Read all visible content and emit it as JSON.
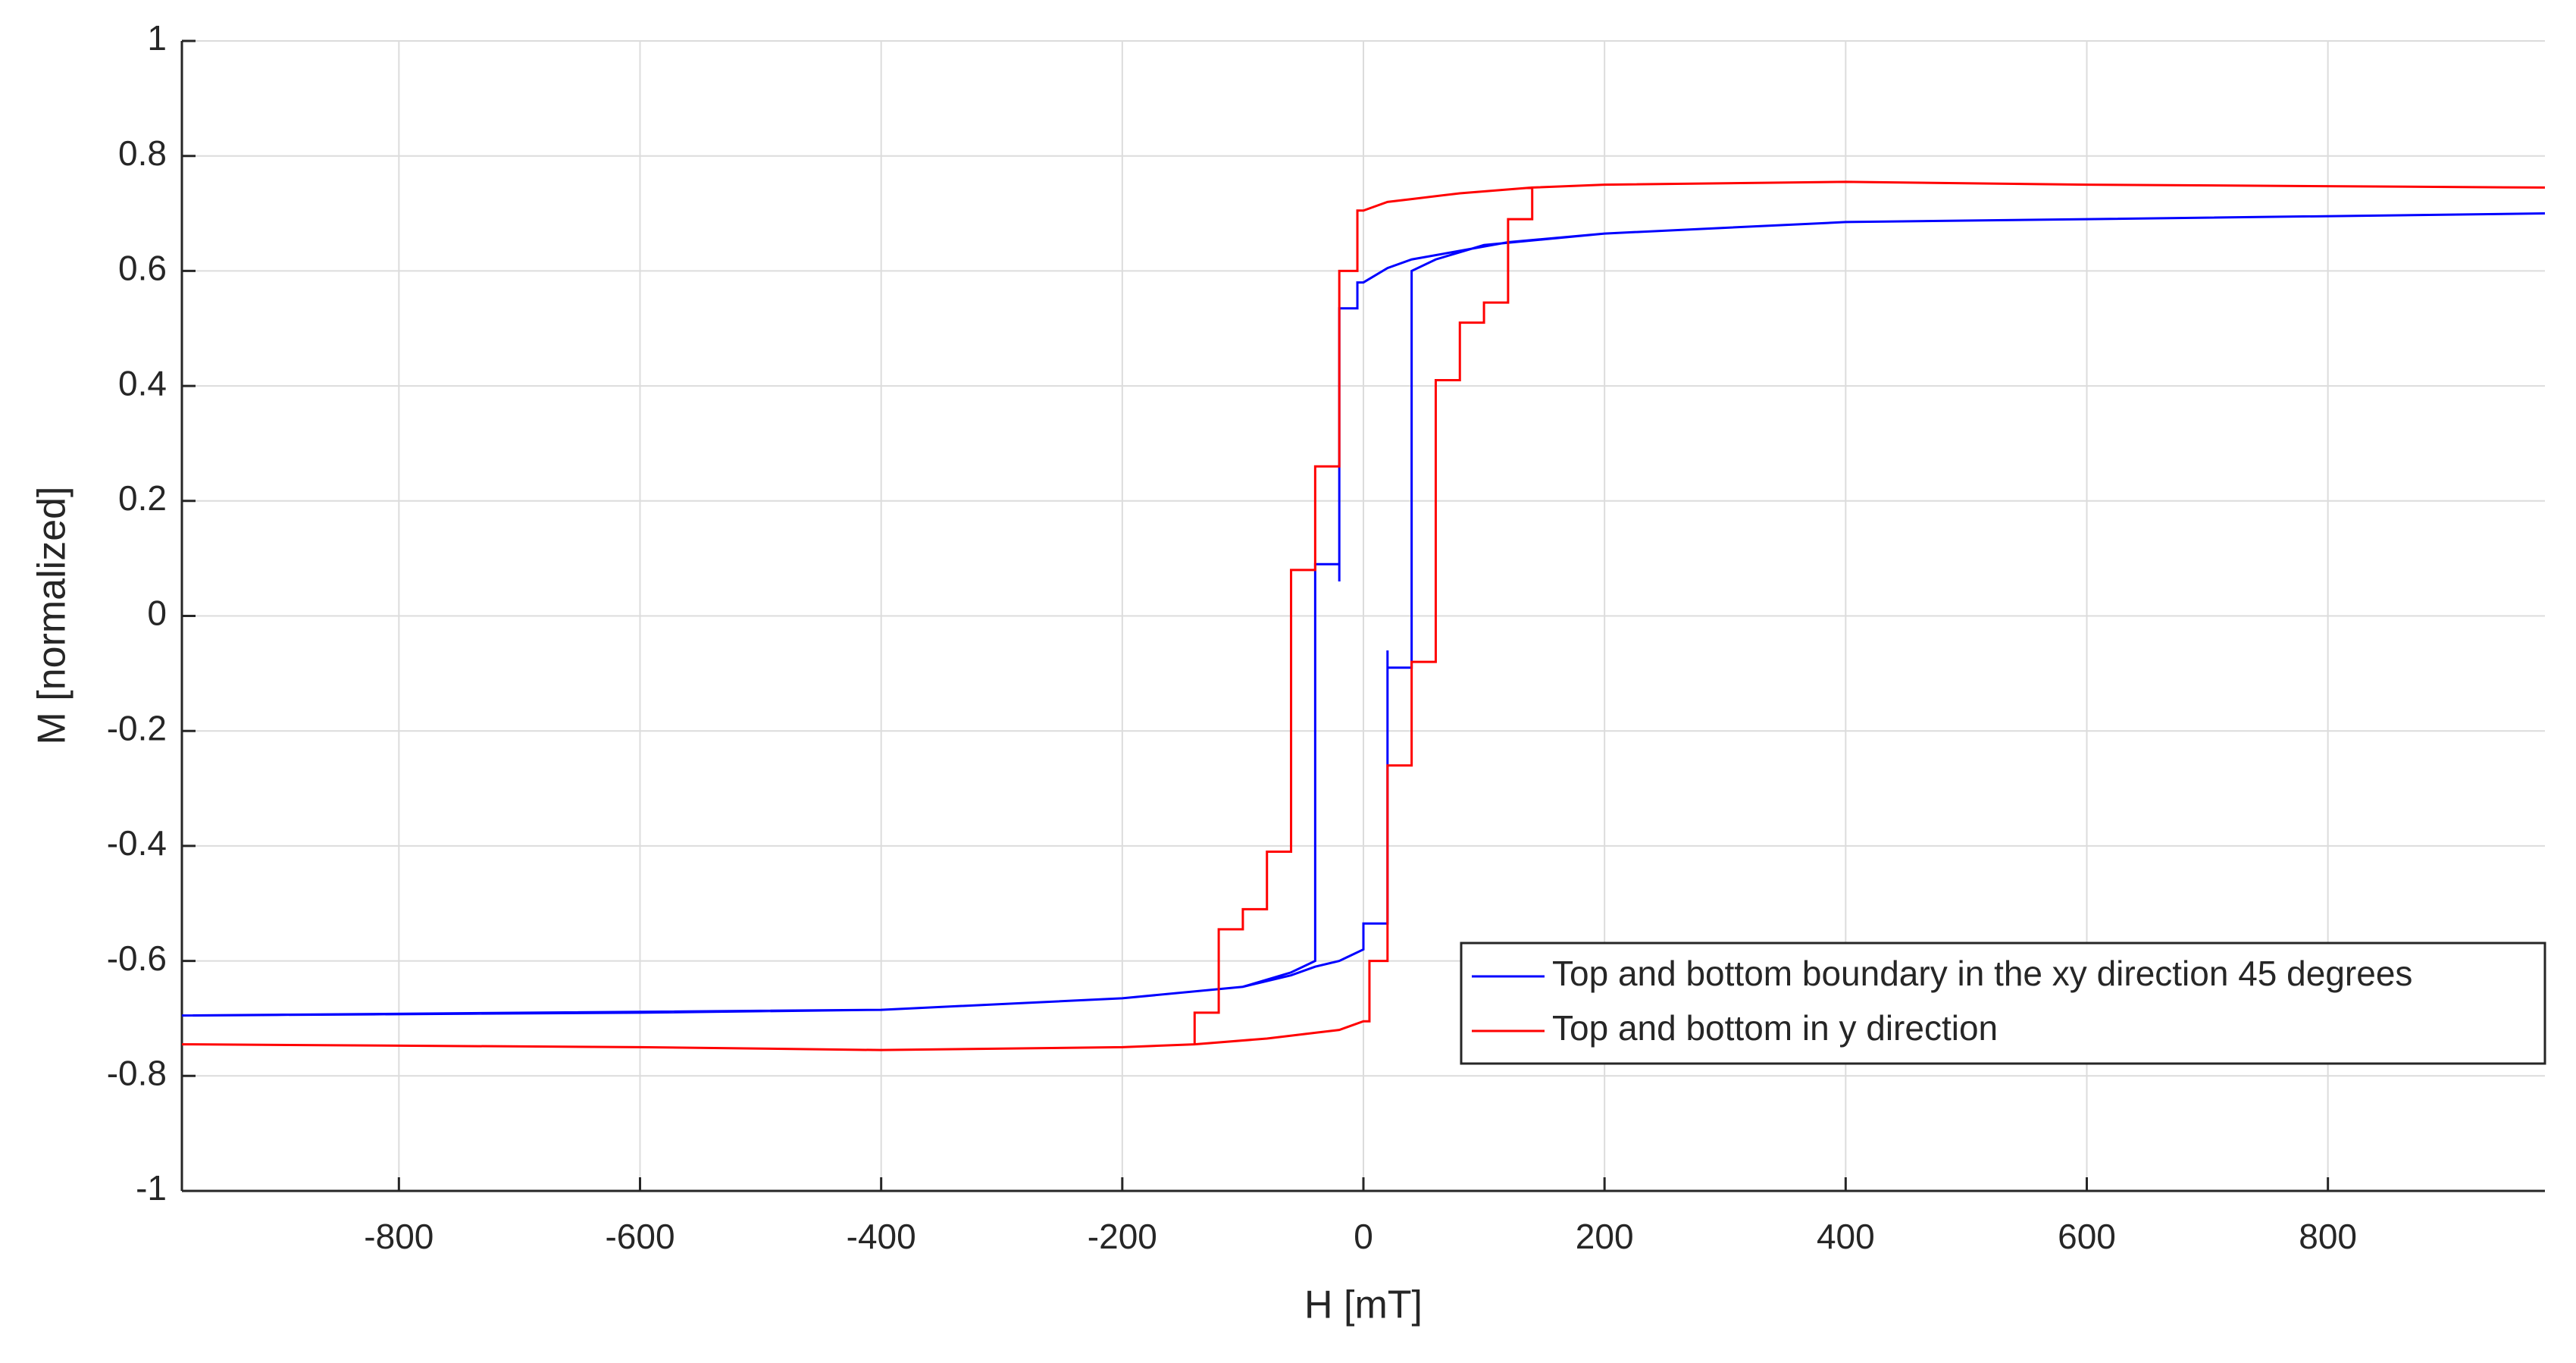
{
  "chart_data": {
    "type": "line",
    "xlabel": "H [mT]",
    "ylabel": "M [normalized]",
    "xlim": [
      -980,
      980
    ],
    "ylim": [
      -1,
      1
    ],
    "xticks": [
      -800,
      -600,
      -400,
      -200,
      0,
      200,
      400,
      600,
      800
    ],
    "yticks": [
      -1,
      -0.8,
      -0.6,
      -0.4,
      -0.2,
      0,
      0.2,
      0.4,
      0.6,
      0.8,
      1
    ],
    "grid": true,
    "legend_position": "lower right",
    "series": [
      {
        "name": "Top and bottom boundary in the xy direction 45 degrees",
        "color": "#0000ff",
        "x": [
          980,
          600,
          400,
          200,
          120,
          80,
          40,
          20,
          0,
          -5,
          -5,
          -20,
          -20,
          -20,
          -40,
          -40,
          -60,
          -100,
          -200,
          -400,
          -600,
          -980,
          -400,
          -200,
          -100,
          -60,
          -40,
          -20,
          0,
          0,
          20,
          20,
          20,
          40,
          40,
          60,
          100,
          200,
          400,
          600,
          980
        ],
        "values": [
          0.7,
          0.69,
          0.685,
          0.665,
          0.65,
          0.635,
          0.62,
          0.605,
          0.58,
          0.58,
          0.535,
          0.535,
          0.06,
          0.09,
          0.09,
          -0.6,
          -0.62,
          -0.645,
          -0.665,
          -0.685,
          -0.69,
          -0.695,
          -0.685,
          -0.665,
          -0.645,
          -0.625,
          -0.61,
          -0.6,
          -0.58,
          -0.535,
          -0.535,
          -0.06,
          -0.09,
          -0.09,
          0.6,
          0.62,
          0.645,
          0.665,
          0.685,
          0.69,
          0.7
        ]
      },
      {
        "name": "Top and bottom in y direction",
        "color": "#ff0000",
        "x": [
          980,
          600,
          400,
          200,
          140,
          80,
          40,
          20,
          0,
          -5,
          -5,
          -20,
          -20,
          -40,
          -40,
          -60,
          -60,
          -80,
          -80,
          -100,
          -100,
          -120,
          -120,
          -140,
          -140,
          -200,
          -400,
          -600,
          -980,
          -600,
          -400,
          -200,
          -140,
          -80,
          -40,
          -20,
          0,
          5,
          5,
          20,
          20,
          40,
          40,
          60,
          60,
          80,
          80,
          100,
          100,
          120,
          120,
          140,
          140,
          200,
          400,
          600,
          980
        ],
        "values": [
          0.745,
          0.75,
          0.755,
          0.75,
          0.745,
          0.735,
          0.725,
          0.72,
          0.705,
          0.705,
          0.6,
          0.6,
          0.26,
          0.26,
          0.08,
          0.08,
          -0.41,
          -0.41,
          -0.51,
          -0.51,
          -0.545,
          -0.545,
          -0.69,
          -0.69,
          -0.745,
          -0.75,
          -0.755,
          -0.75,
          -0.745,
          -0.75,
          -0.755,
          -0.75,
          -0.745,
          -0.735,
          -0.725,
          -0.72,
          -0.705,
          -0.705,
          -0.6,
          -0.6,
          -0.26,
          -0.26,
          -0.08,
          -0.08,
          0.41,
          0.41,
          0.51,
          0.51,
          0.545,
          0.545,
          0.69,
          0.69,
          0.745,
          0.75,
          0.755,
          0.75,
          0.745
        ]
      }
    ]
  }
}
